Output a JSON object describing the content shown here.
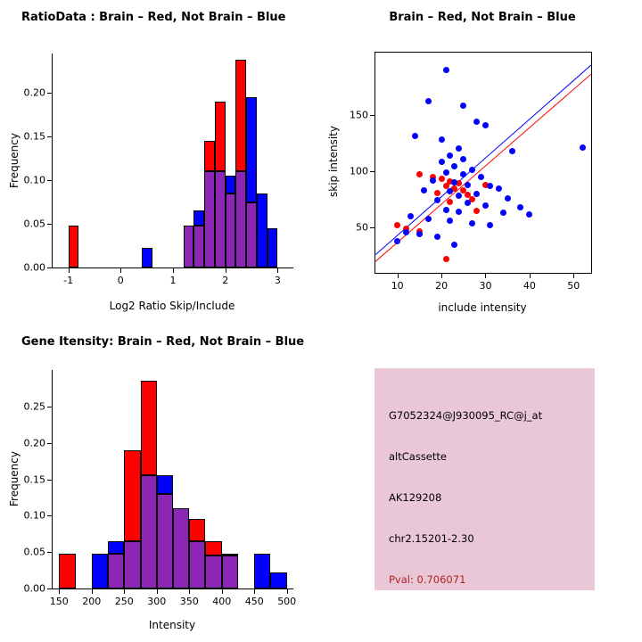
{
  "panels": {
    "info_box": {
      "bg": "#e9c7d7",
      "lines": [
        {
          "text": "G7052324@J930095_RC@j_at",
          "color": "#000000"
        },
        {
          "text": "altCassette",
          "color": "#000000"
        },
        {
          "text": "AK129208",
          "color": "#000000"
        },
        {
          "text": "chr2.15201-2.30",
          "color": "#000000"
        },
        {
          "text": "Pval: 0.706071",
          "color": "#b22222"
        }
      ]
    }
  },
  "chart_data": [
    {
      "type": "bar",
      "subtype": "histogram-overlay",
      "title": "RatioData : Brain – Red, Not Brain – Blue",
      "xlabel": "Log2 Ratio Skip/Include",
      "ylabel": "Frequency",
      "xlim": [
        -1.3,
        3.3
      ],
      "ylim": [
        0,
        0.245
      ],
      "xticks": [
        -1,
        0,
        1,
        2,
        3
      ],
      "yticks": [
        0,
        0.05,
        0.1,
        0.15,
        0.2
      ],
      "bin_width": 0.2,
      "bins": [
        -1.0,
        -0.8,
        -0.6,
        -0.4,
        -0.2,
        0.0,
        0.2,
        0.4,
        0.6,
        0.8,
        1.0,
        1.2,
        1.4,
        1.6,
        1.8,
        2.0,
        2.2,
        2.4,
        2.6,
        2.8
      ],
      "overlap_color": "#8c26b4",
      "grid": false,
      "series": [
        {
          "name": "Brain (red)",
          "color": "#ff0000",
          "values": [
            0.048,
            0,
            0,
            0,
            0,
            0,
            0,
            0,
            0,
            0,
            0,
            0.048,
            0.048,
            0.145,
            0.19,
            0.085,
            0.238,
            0.075,
            0,
            0
          ]
        },
        {
          "name": "Not Brain (blue)",
          "color": "#0000ff",
          "values": [
            0,
            0,
            0,
            0,
            0,
            0,
            0,
            0.022,
            0,
            0,
            0,
            0.048,
            0.065,
            0.11,
            0.11,
            0.105,
            0.11,
            0.195,
            0.085,
            0.045
          ]
        }
      ]
    },
    {
      "type": "scatter",
      "title": "Brain – Red, Not Brain – Blue",
      "xlabel": "include intensity",
      "ylabel": "skip intensity",
      "xlim": [
        5,
        54
      ],
      "ylim": [
        10,
        205
      ],
      "xticks": [
        10,
        20,
        30,
        40,
        50
      ],
      "yticks": [
        50,
        100,
        150
      ],
      "grid": false,
      "series": [
        {
          "name": "Brain (red)",
          "color": "#ff0000",
          "points": [
            [
              15,
              97
            ],
            [
              18,
              95
            ],
            [
              20,
              93
            ],
            [
              22,
              91
            ],
            [
              24,
              89
            ],
            [
              21,
              87
            ],
            [
              23,
              85
            ],
            [
              25,
              83
            ],
            [
              19,
              81
            ],
            [
              26,
              79
            ],
            [
              30,
              88
            ],
            [
              27,
              75
            ],
            [
              22,
              73
            ],
            [
              28,
              65
            ],
            [
              10,
              52
            ],
            [
              12,
              49
            ],
            [
              15,
              47
            ],
            [
              21,
              22
            ]
          ]
        },
        {
          "name": "Not Brain (blue)",
          "color": "#0000ff",
          "points": [
            [
              21,
              190
            ],
            [
              17,
              162
            ],
            [
              25,
              158
            ],
            [
              28,
              144
            ],
            [
              30,
              141
            ],
            [
              14,
              131
            ],
            [
              20,
              128
            ],
            [
              24,
              120
            ],
            [
              52,
              121
            ],
            [
              36,
              118
            ],
            [
              22,
              114
            ],
            [
              25,
              111
            ],
            [
              20,
              108
            ],
            [
              23,
              104
            ],
            [
              27,
              101
            ],
            [
              21,
              99
            ],
            [
              25,
              97
            ],
            [
              29,
              95
            ],
            [
              18,
              92
            ],
            [
              23,
              90
            ],
            [
              26,
              88
            ],
            [
              31,
              87
            ],
            [
              33,
              85
            ],
            [
              16,
              83
            ],
            [
              22,
              82
            ],
            [
              28,
              80
            ],
            [
              24,
              78
            ],
            [
              35,
              76
            ],
            [
              19,
              74
            ],
            [
              26,
              72
            ],
            [
              30,
              70
            ],
            [
              38,
              68
            ],
            [
              21,
              66
            ],
            [
              24,
              64
            ],
            [
              40,
              62
            ],
            [
              34,
              63
            ],
            [
              13,
              60
            ],
            [
              17,
              58
            ],
            [
              22,
              56
            ],
            [
              27,
              54
            ],
            [
              31,
              52
            ],
            [
              12,
              46
            ],
            [
              15,
              44
            ],
            [
              19,
              42
            ],
            [
              10,
              38
            ],
            [
              23,
              35
            ]
          ]
        }
      ],
      "lines": [
        {
          "name": "red-fit-line",
          "color": "#ff0000",
          "from": [
            5,
            20
          ],
          "to": [
            54,
            186
          ]
        },
        {
          "name": "blue-fit-line",
          "color": "#0000ff",
          "from": [
            5,
            26
          ],
          "to": [
            54,
            194
          ]
        }
      ]
    },
    {
      "type": "bar",
      "subtype": "histogram-overlay",
      "title": "Gene Itensity: Brain – Red, Not Brain – Blue",
      "xlabel": "Intensity",
      "ylabel": "Frequency",
      "xlim": [
        140,
        510
      ],
      "ylim": [
        0,
        0.3
      ],
      "xticks": [
        150,
        200,
        250,
        300,
        350,
        400,
        450,
        500
      ],
      "yticks": [
        0,
        0.05,
        0.1,
        0.15,
        0.2,
        0.25
      ],
      "bin_width": 25,
      "bins": [
        150,
        175,
        200,
        225,
        250,
        275,
        300,
        325,
        350,
        375,
        400,
        425,
        450,
        475
      ],
      "overlap_color": "#8c26b4",
      "grid": false,
      "series": [
        {
          "name": "Brain (red)",
          "color": "#ff0000",
          "values": [
            0.048,
            0,
            0,
            0.048,
            0.19,
            0.285,
            0.13,
            0.11,
            0.095,
            0.065,
            0.048,
            0,
            0,
            0
          ]
        },
        {
          "name": "Not Brain (blue)",
          "color": "#0000ff",
          "values": [
            0,
            0,
            0.048,
            0.065,
            0.065,
            0.155,
            0.155,
            0.11,
            0.065,
            0.045,
            0.045,
            0,
            0.048,
            0.022
          ]
        }
      ]
    }
  ]
}
